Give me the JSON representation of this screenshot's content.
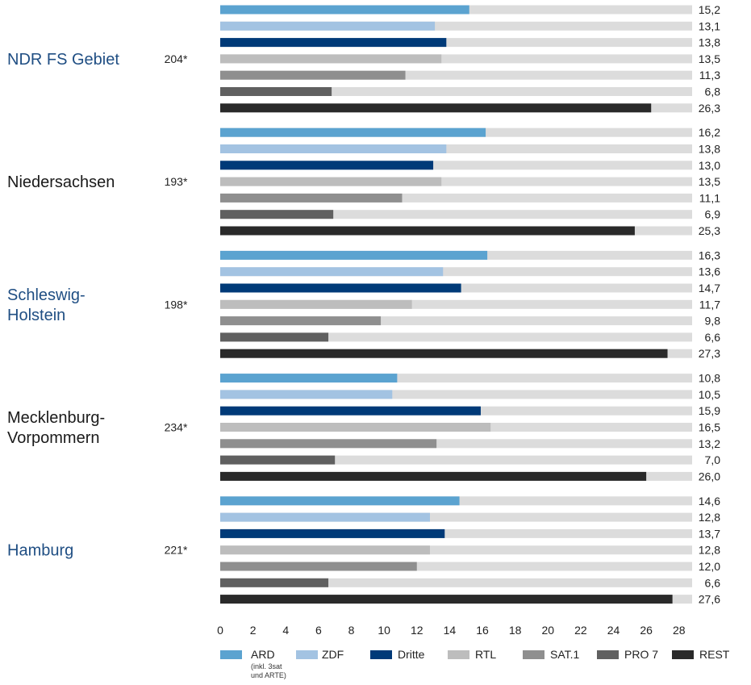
{
  "colors": {
    "track": "#dcdcdc",
    "group_label_blue": "#1f4e83",
    "group_label_dark": "#1a1a1a"
  },
  "chart_data": {
    "type": "bar",
    "orientation": "horizontal",
    "xlim": [
      0,
      28.8
    ],
    "xticks": [
      "0",
      "2",
      "4",
      "6",
      "8",
      "10",
      "12",
      "14",
      "16",
      "18",
      "20",
      "22",
      "24",
      "26",
      "28"
    ],
    "xtick_values": [
      0,
      2,
      4,
      6,
      8,
      10,
      12,
      14,
      16,
      18,
      20,
      22,
      24,
      26,
      28
    ],
    "series": [
      {
        "name": "ARD",
        "note_lines": [
          "(inkl. 3sat",
          "und ARTE)"
        ],
        "color": "#5ba3d0"
      },
      {
        "name": "ZDF",
        "color": "#a3c3e2"
      },
      {
        "name": "Dritte",
        "color": "#003a78"
      },
      {
        "name": "RTL",
        "color": "#bdbdbd"
      },
      {
        "name": "SAT.1",
        "color": "#8f8f8f"
      },
      {
        "name": "PRO 7",
        "color": "#606060"
      },
      {
        "name": "REST",
        "color": "#2a2a2a"
      }
    ],
    "groups": [
      {
        "label_lines": [
          "NDR FS Gebiet"
        ],
        "label_color": "blue",
        "count": "204*",
        "values": [
          15.2,
          13.1,
          13.8,
          13.5,
          11.3,
          6.8,
          26.3
        ],
        "value_labels": [
          "15,2",
          "13,1",
          "13,8",
          "13,5",
          "11,3",
          "6,8",
          "26,3"
        ]
      },
      {
        "label_lines": [
          "Niedersachsen"
        ],
        "label_color": "dark",
        "count": "193*",
        "values": [
          16.2,
          13.8,
          13.0,
          13.5,
          11.1,
          6.9,
          25.3
        ],
        "value_labels": [
          "16,2",
          "13,8",
          "13,0",
          "13,5",
          "11,1",
          "6,9",
          "25,3"
        ]
      },
      {
        "label_lines": [
          "Schleswig-",
          "Holstein"
        ],
        "label_color": "blue",
        "count": "198*",
        "values": [
          16.3,
          13.6,
          14.7,
          11.7,
          9.8,
          6.6,
          27.3
        ],
        "value_labels": [
          "16,3",
          "13,6",
          "14,7",
          "11,7",
          "9,8",
          "6,6",
          "27,3"
        ]
      },
      {
        "label_lines": [
          "Mecklenburg-",
          "Vorpommern"
        ],
        "label_color": "dark",
        "count": "234*",
        "values": [
          10.8,
          10.5,
          15.9,
          16.5,
          13.2,
          7.0,
          26.0
        ],
        "value_labels": [
          "10,8",
          "10,5",
          "15,9",
          "16,5",
          "13,2",
          "7,0",
          "26,0"
        ]
      },
      {
        "label_lines": [
          "Hamburg"
        ],
        "label_color": "blue",
        "count": "221*",
        "values": [
          14.6,
          12.8,
          13.7,
          12.8,
          12.0,
          6.6,
          27.6
        ],
        "value_labels": [
          "14,6",
          "12,8",
          "13,7",
          "12,8",
          "12,0",
          "6,6",
          "27,6"
        ]
      }
    ]
  }
}
